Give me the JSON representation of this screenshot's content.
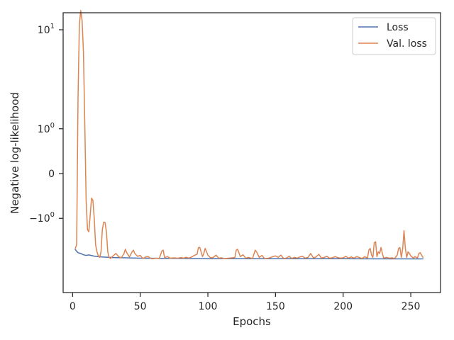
{
  "chart_data": {
    "type": "line",
    "title": "",
    "xlabel": "Epochs",
    "ylabel": "Negative log-likelihood",
    "y_scale": "symlog",
    "xlim": [
      -7,
      272
    ],
    "x_ticks": [
      0,
      50,
      100,
      150,
      200,
      250
    ],
    "x_tick_labels": [
      "0",
      "50",
      "100",
      "150",
      "200",
      "250"
    ],
    "y_ticks": [
      10,
      1,
      0,
      -1
    ],
    "y_tick_labels": [
      "10^1",
      "10^0",
      "0",
      "−10^0"
    ],
    "legend_position": "top-right",
    "grid": false,
    "series": [
      {
        "name": "Loss",
        "color": "#4c72b0",
        "points": [
          [
            2,
            -2.36
          ],
          [
            3,
            -2.47
          ],
          [
            4,
            -2.55
          ],
          [
            6,
            -2.6
          ],
          [
            8,
            -2.68
          ],
          [
            10,
            -2.72
          ],
          [
            12,
            -2.69
          ],
          [
            14,
            -2.73
          ],
          [
            16,
            -2.77
          ],
          [
            20,
            -2.81
          ],
          [
            25,
            -2.84
          ],
          [
            30,
            -2.86
          ],
          [
            40,
            -2.88
          ],
          [
            50,
            -2.9
          ],
          [
            60,
            -2.91
          ],
          [
            80,
            -2.92
          ],
          [
            100,
            -2.93
          ],
          [
            150,
            -2.94
          ],
          [
            200,
            -2.94
          ],
          [
            259,
            -2.95
          ]
        ]
      },
      {
        "name": "Val. loss",
        "color": "#dd8452",
        "points": [
          [
            2,
            -2.3
          ],
          [
            3,
            -2.1
          ],
          [
            4,
            2.3
          ],
          [
            5,
            11
          ],
          [
            6,
            14.5
          ],
          [
            7,
            12
          ],
          [
            8,
            6.5
          ],
          [
            9,
            1.2
          ],
          [
            10,
            -0.5
          ],
          [
            11,
            -1.4
          ],
          [
            12,
            -1.5
          ],
          [
            13,
            -0.9
          ],
          [
            14,
            -0.45
          ],
          [
            15,
            -0.5
          ],
          [
            16,
            -1.0
          ],
          [
            17,
            -2.1
          ],
          [
            18,
            -2.5
          ],
          [
            19,
            -2.75
          ],
          [
            20,
            -2.85
          ],
          [
            21,
            -2.5
          ],
          [
            22,
            -1.4
          ],
          [
            23,
            -1.13
          ],
          [
            24,
            -1.14
          ],
          [
            25,
            -1.5
          ],
          [
            26,
            -2.5
          ],
          [
            27,
            -2.85
          ],
          [
            28,
            -2.92
          ],
          [
            30,
            -2.75
          ],
          [
            32,
            -2.6
          ],
          [
            34,
            -2.8
          ],
          [
            36,
            -2.88
          ],
          [
            38,
            -2.6
          ],
          [
            39,
            -2.35
          ],
          [
            40,
            -2.55
          ],
          [
            42,
            -2.82
          ],
          [
            44,
            -2.5
          ],
          [
            45,
            -2.4
          ],
          [
            46,
            -2.6
          ],
          [
            48,
            -2.78
          ],
          [
            50,
            -2.72
          ],
          [
            52,
            -2.93
          ],
          [
            54,
            -2.82
          ],
          [
            56,
            -2.8
          ],
          [
            58,
            -2.93
          ],
          [
            60,
            -2.93
          ],
          [
            62,
            -2.9
          ],
          [
            64,
            -2.93
          ],
          [
            66,
            -2.45
          ],
          [
            67,
            -2.4
          ],
          [
            68,
            -2.87
          ],
          [
            70,
            -2.8
          ],
          [
            72,
            -2.9
          ],
          [
            75,
            -2.88
          ],
          [
            78,
            -2.9
          ],
          [
            80,
            -2.86
          ],
          [
            82,
            -2.9
          ],
          [
            84,
            -2.84
          ],
          [
            86,
            -2.9
          ],
          [
            88,
            -2.82
          ],
          [
            90,
            -2.72
          ],
          [
            92,
            -2.65
          ],
          [
            93,
            -2.26
          ],
          [
            94,
            -2.25
          ],
          [
            95,
            -2.5
          ],
          [
            96,
            -2.8
          ],
          [
            97,
            -2.6
          ],
          [
            98,
            -2.3
          ],
          [
            100,
            -2.7
          ],
          [
            102,
            -2.88
          ],
          [
            104,
            -2.85
          ],
          [
            106,
            -2.7
          ],
          [
            108,
            -2.9
          ],
          [
            110,
            -2.88
          ],
          [
            112,
            -2.93
          ],
          [
            115,
            -2.9
          ],
          [
            118,
            -2.88
          ],
          [
            120,
            -2.85
          ],
          [
            121,
            -2.4
          ],
          [
            122,
            -2.35
          ],
          [
            124,
            -2.8
          ],
          [
            126,
            -2.68
          ],
          [
            128,
            -2.9
          ],
          [
            130,
            -2.85
          ],
          [
            133,
            -2.93
          ],
          [
            135,
            -2.4
          ],
          [
            136,
            -2.5
          ],
          [
            138,
            -2.85
          ],
          [
            140,
            -2.72
          ],
          [
            142,
            -2.93
          ],
          [
            145,
            -2.9
          ],
          [
            148,
            -2.8
          ],
          [
            150,
            -2.75
          ],
          [
            152,
            -2.85
          ],
          [
            154,
            -2.7
          ],
          [
            156,
            -2.92
          ],
          [
            158,
            -2.9
          ],
          [
            160,
            -2.78
          ],
          [
            162,
            -2.92
          ],
          [
            164,
            -2.85
          ],
          [
            166,
            -2.9
          ],
          [
            168,
            -2.82
          ],
          [
            170,
            -2.78
          ],
          [
            172,
            -2.9
          ],
          [
            174,
            -2.85
          ],
          [
            176,
            -2.6
          ],
          [
            178,
            -2.88
          ],
          [
            180,
            -2.82
          ],
          [
            182,
            -2.65
          ],
          [
            184,
            -2.9
          ],
          [
            186,
            -2.85
          ],
          [
            188,
            -2.78
          ],
          [
            190,
            -2.9
          ],
          [
            192,
            -2.88
          ],
          [
            194,
            -2.8
          ],
          [
            196,
            -2.86
          ],
          [
            198,
            -2.9
          ],
          [
            200,
            -2.88
          ],
          [
            202,
            -2.78
          ],
          [
            204,
            -2.9
          ],
          [
            206,
            -2.82
          ],
          [
            208,
            -2.9
          ],
          [
            210,
            -2.8
          ],
          [
            212,
            -2.86
          ],
          [
            214,
            -2.92
          ],
          [
            216,
            -2.8
          ],
          [
            218,
            -2.9
          ],
          [
            219,
            -2.4
          ],
          [
            220,
            -2.3
          ],
          [
            221,
            -2.7
          ],
          [
            222,
            -2.85
          ],
          [
            223,
            -2.0
          ],
          [
            224,
            -1.95
          ],
          [
            225,
            -2.8
          ],
          [
            226,
            -2.5
          ],
          [
            227,
            -2.6
          ],
          [
            228,
            -2.25
          ],
          [
            229,
            -2.6
          ],
          [
            230,
            -2.9
          ],
          [
            232,
            -2.85
          ],
          [
            234,
            -2.9
          ],
          [
            236,
            -2.88
          ],
          [
            238,
            -2.92
          ],
          [
            240,
            -2.7
          ],
          [
            241,
            -2.3
          ],
          [
            242,
            -2.25
          ],
          [
            243,
            -2.85
          ],
          [
            244,
            -2.35
          ],
          [
            245,
            -1.45
          ],
          [
            246,
            -2.3
          ],
          [
            247,
            -2.85
          ],
          [
            248,
            -2.5
          ],
          [
            249,
            -2.6
          ],
          [
            250,
            -2.75
          ],
          [
            252,
            -2.9
          ],
          [
            253,
            -2.8
          ],
          [
            255,
            -2.88
          ],
          [
            256,
            -2.6
          ],
          [
            257,
            -2.55
          ],
          [
            258,
            -2.7
          ],
          [
            259,
            -2.85
          ]
        ]
      }
    ]
  }
}
